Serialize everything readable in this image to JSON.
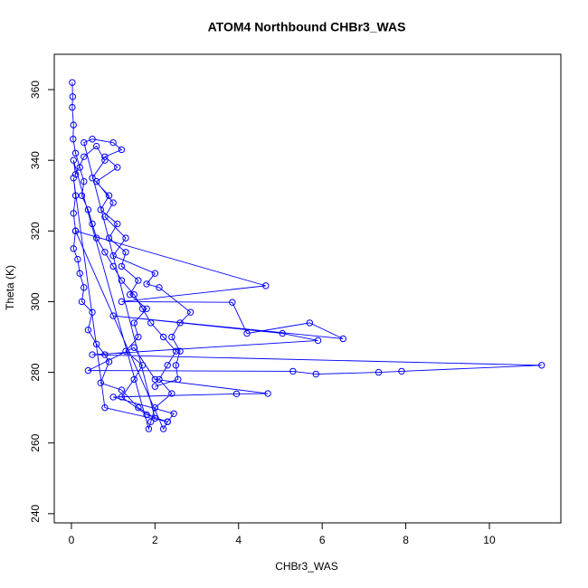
{
  "chart_data": {
    "type": "line",
    "title": "ATOM4 Northbound CHBr3_WAS",
    "x_label": "CHBr3_WAS",
    "y_label": "Theta (K)",
    "color": "#0000ff",
    "markers": "open-circle",
    "x": [
      0.02,
      0.03,
      0.02,
      0.05,
      0.04,
      0.1,
      0.2,
      0.3,
      0.25,
      0.4,
      0.5,
      0.6,
      0.8,
      1.0,
      1.2,
      1.5,
      1.7,
      1.9,
      2.2,
      2.5,
      2.3,
      2.1,
      2.4,
      2.0,
      1.9,
      1.85,
      0.05,
      0.1,
      0.3,
      0.6,
      0.8,
      0.5,
      0.9,
      0.7,
      1.1,
      0.9,
      1.3,
      1.2,
      1.6,
      1.4,
      1.8,
      1.5,
      1.6,
      1.3,
      1.7,
      1.5,
      1.2,
      1.8,
      2.3,
      2.2,
      0.1,
      4.65,
      1.2,
      3.85,
      4.2,
      5.7,
      6.5,
      1.0,
      5.05,
      5.9,
      0.5,
      11.25,
      7.9,
      7.35,
      5.85,
      5.3,
      0.4,
      1.5,
      2.0,
      4.7,
      3.95,
      1.0,
      2.45,
      2.3,
      0.8,
      0.05,
      0.1,
      0.05,
      0.1,
      0.05,
      0.15,
      0.2,
      0.3,
      0.25,
      0.5,
      0.4,
      0.6,
      0.8,
      0.9,
      0.7,
      1.2,
      1.6,
      2.0,
      0.3,
      0.5,
      1.0,
      1.2,
      0.8,
      1.1,
      0.6,
      1.0,
      0.8,
      1.3,
      1.0,
      2.0,
      1.8,
      2.1,
      2.85,
      2.6,
      2.4,
      2.6,
      2.5,
      2.55,
      2.0
    ],
    "values": [
      362,
      358,
      355,
      350,
      346,
      342,
      338,
      334,
      330,
      326,
      322,
      318,
      314,
      310,
      306,
      302,
      298,
      294,
      290,
      286,
      282,
      278,
      274,
      270,
      266,
      264,
      340,
      336,
      341,
      344,
      340,
      335,
      330,
      326,
      322,
      318,
      314,
      310,
      306,
      302,
      298,
      294,
      290,
      286,
      282,
      278,
      273,
      268,
      266,
      264,
      320,
      304.5,
      300,
      299.8,
      291,
      294,
      289.5,
      296,
      291,
      289,
      285,
      282,
      280.3,
      280,
      279.5,
      280.3,
      280.5,
      287,
      278,
      274,
      273.9,
      273,
      268.3,
      266,
      270,
      335,
      330,
      325,
      320,
      315,
      312,
      308,
      304,
      300,
      297,
      292,
      288,
      285,
      283,
      277,
      275,
      270,
      267,
      345,
      346,
      345,
      343,
      341,
      338,
      334,
      328,
      324,
      318,
      313,
      308,
      305,
      304,
      297,
      294,
      290,
      286,
      282,
      278,
      276
    ],
    "xlim": [
      -0.41,
      11.71
    ],
    "xticks": [
      0,
      2,
      4,
      6,
      8,
      10
    ],
    "ylim": [
      237.4,
      370
    ],
    "yticks": [
      240,
      260,
      280,
      300,
      320,
      340,
      360
    ]
  }
}
